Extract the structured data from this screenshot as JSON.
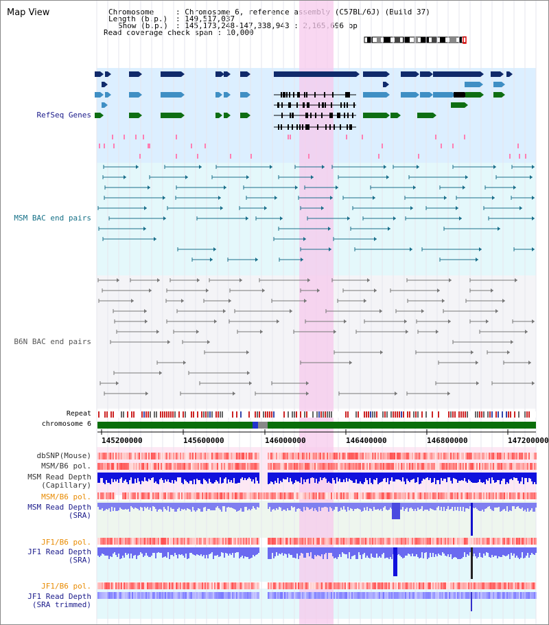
{
  "page_title": "Map View",
  "header": {
    "chromosome_label": "Chromosome",
    "chromosome_value": "Chromosome 6, reference assembly (C57BL/6J) (Build 37)",
    "length_label": "Length (b.p.)",
    "length_value": "149,517,037",
    "show_label": "Show (b.p.)",
    "show_value": "145,173,248-147,338,943 : 2,165,696 bp",
    "coverage_label": "Read coverage check span",
    "coverage_value": "10,000"
  },
  "tracks": {
    "refseq": "RefSeq Genes",
    "msm_bac": "MSM BAC end pairs",
    "b6n_bac": "B6N BAC end pairs",
    "repeat": "Repeat",
    "chrom": "chromosome 6",
    "dbsnp": "dbSNP(Mouse)",
    "msm_b6_pol": "MSM/B6 pol.",
    "msm_depth_cap_1": "MSM Read Depth",
    "msm_depth_cap_2": "(Capillary)",
    "msm_b6_pol_2": "MSM/B6 pol.",
    "msm_depth_sra_1": "MSM Read Depth",
    "msm_depth_sra_2": "(SRA)",
    "jf1_b6_pol": "JF1/B6 pol.",
    "jf1_depth_1": "JF1 Read Depth",
    "jf1_depth_2": "(SRA)",
    "jf1_b6_pol_2": "JF1/B6 pol.",
    "jf1_trim_1": "JF1 Read Depth",
    "jf1_trim_2": "(SRA trimmed)"
  },
  "axis": {
    "ticks": [
      "145200000",
      "145600000",
      "146000000",
      "146400000",
      "146800000",
      "147200000"
    ]
  },
  "colors": {
    "refseq_bg": "#dcefff",
    "msm_bg": "#e4f8fb",
    "b6n_bg": "#f4f4f7",
    "highlight": "#f7d6f0",
    "gene_dark": "#102a6a",
    "gene_mid": "#3f8fc4",
    "gene_green": "#0e6e12",
    "msm_pair": "#1a6e8a",
    "b6n_pair": "#777777",
    "label_blue": "#1a1a8a",
    "label_teal": "#136f86",
    "label_orange": "#e88a00",
    "chrom_green": "#0a6e0a"
  }
}
